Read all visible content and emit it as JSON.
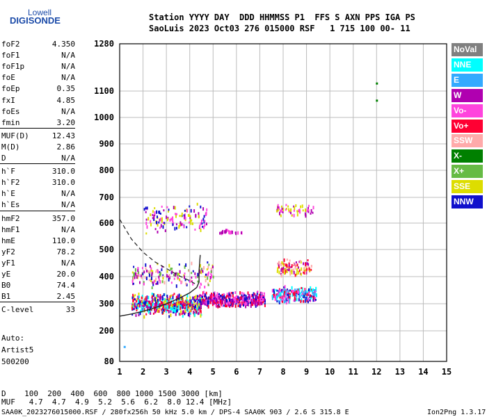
{
  "logo": {
    "line1": "Lowell",
    "line2": "DIGISONDE"
  },
  "header": {
    "line1": "Station YYYY DAY  DDD HHMMSS P1  FFS S AXN PPS IGA PS",
    "line2": "SaoLuis 2023 Oct03 276 015000 RSF   1 715 100 00- 11"
  },
  "params": [
    {
      "name": "foF2",
      "value": "4.350"
    },
    {
      "name": "foF1",
      "value": "N/A"
    },
    {
      "name": "foF1p",
      "value": "N/A"
    },
    {
      "name": "foE",
      "value": "N/A"
    },
    {
      "name": "foEp",
      "value": "0.35"
    },
    {
      "name": "fxI",
      "value": "4.85"
    },
    {
      "name": "foEs",
      "value": "N/A"
    },
    {
      "name": "fmin",
      "value": "3.20"
    },
    {
      "name": "MUF(D)",
      "value": "12.43"
    },
    {
      "name": "M(D)",
      "value": "2.86"
    },
    {
      "name": "D",
      "value": "N/A"
    },
    {
      "name": "h`F",
      "value": "310.0"
    },
    {
      "name": "h`F2",
      "value": "310.0"
    },
    {
      "name": "h`E",
      "value": "N/A"
    },
    {
      "name": "h`Es",
      "value": "N/A"
    },
    {
      "name": "hmF2",
      "value": "357.0"
    },
    {
      "name": "hmF1",
      "value": "N/A"
    },
    {
      "name": "hmE",
      "value": "110.0"
    },
    {
      "name": "yF2",
      "value": "78.2"
    },
    {
      "name": "yF1",
      "value": "N/A"
    },
    {
      "name": "yE",
      "value": "20.0"
    },
    {
      "name": "B0",
      "value": "74.4"
    },
    {
      "name": "B1",
      "value": "2.45"
    },
    {
      "name": "C-level",
      "value": "33"
    }
  ],
  "auto": {
    "label": "Auto:",
    "artist": "Artist5",
    "version": "500200"
  },
  "legend": [
    {
      "label": "NoVal",
      "color": "#808080"
    },
    {
      "label": "NNE",
      "color": "#00ffff"
    },
    {
      "label": "E",
      "color": "#33aaff"
    },
    {
      "label": "W",
      "color": "#b000b0"
    },
    {
      "label": "Vo-",
      "color": "#ff44dd"
    },
    {
      "label": "Vo+",
      "color": "#ff0033"
    },
    {
      "label": "SSW",
      "color": "#ffaaaa"
    },
    {
      "label": "X-",
      "color": "#008000"
    },
    {
      "label": "X+",
      "color": "#66bb44"
    },
    {
      "label": "SSE",
      "color": "#dddd00"
    },
    {
      "label": "NNW",
      "color": "#1010cc"
    }
  ],
  "muf_table": {
    "line1": "D    100  200  400  600  800 1000 1500 3000 [km]",
    "line2": "MUF   4.7  4.7  4.9  5.2  5.6  6.2  8.0 12.4 [MHz]"
  },
  "footer": {
    "left": "SAA0K_2023276015000.RSF / 280fx256h 50 kHz 5.0 km / DPS-4 SAA0K 903 / 2.6 S 315.8 E",
    "right": "Ion2Png 1.3.17"
  },
  "chart_data": {
    "type": "scatter",
    "x_ticks": [
      1,
      2,
      3,
      4,
      5,
      6,
      7,
      8,
      9,
      10,
      11,
      12,
      13,
      14,
      15
    ],
    "y_ticks": [
      80,
      200,
      300,
      400,
      500,
      600,
      700,
      800,
      900,
      1000,
      1100,
      1280
    ],
    "xlim": [
      1,
      15
    ],
    "ylim": [
      80,
      1280
    ],
    "y_scale": "quasi-log",
    "grid": true,
    "legend_position": "right",
    "profile_curve": [
      [
        1.0,
        254
      ],
      [
        1.5,
        262
      ],
      [
        2.0,
        272
      ],
      [
        2.5,
        285
      ],
      [
        3.0,
        300
      ],
      [
        3.5,
        318
      ],
      [
        4.0,
        340
      ],
      [
        4.3,
        360
      ],
      [
        4.4,
        380
      ],
      [
        4.4,
        420
      ],
      [
        4.45,
        480
      ]
    ],
    "trace_curve": [
      [
        1.0,
        615
      ],
      [
        1.5,
        540
      ],
      [
        2.0,
        490
      ],
      [
        2.5,
        455
      ],
      [
        3.0,
        430
      ],
      [
        3.5,
        405
      ],
      [
        4.0,
        385
      ],
      [
        4.3,
        370
      ]
    ],
    "echo_regions": [
      {
        "x": [
          1.5,
          4.5
        ],
        "y": [
          255,
          345
        ],
        "colors": [
          "#b000b0",
          "#1010cc",
          "#ff0033",
          "#dddd00",
          "#00ffff"
        ],
        "density": 520
      },
      {
        "x": [
          4.5,
          7.2
        ],
        "y": [
          290,
          350
        ],
        "colors": [
          "#b000b0",
          "#ff0033",
          "#1010cc",
          "#ff44dd"
        ],
        "density": 420
      },
      {
        "x": [
          7.5,
          9.4
        ],
        "y": [
          305,
          370
        ],
        "colors": [
          "#ff0033",
          "#00ffff",
          "#33aaff",
          "#1010cc",
          "#ff44dd"
        ],
        "density": 240
      },
      {
        "x": [
          1.5,
          5.0
        ],
        "y": [
          360,
          460
        ],
        "colors": [
          "#b000b0",
          "#ff44dd",
          "#dddd00",
          "#66bb44",
          "#ffaaaa",
          "#1010cc"
        ],
        "density": 180
      },
      {
        "x": [
          7.7,
          9.2
        ],
        "y": [
          405,
          470
        ],
        "colors": [
          "#ff0033",
          "#ffaaaa",
          "#b000b0",
          "#dddd00"
        ],
        "density": 110
      },
      {
        "x": [
          2.0,
          4.7
        ],
        "y": [
          560,
          680
        ],
        "colors": [
          "#b000b0",
          "#ff44dd",
          "#1010cc",
          "#dddd00"
        ],
        "density": 130
      },
      {
        "x": [
          5.2,
          6.2
        ],
        "y": [
          560,
          580
        ],
        "colors": [
          "#b000b0",
          "#ff44dd"
        ],
        "density": 30
      },
      {
        "x": [
          7.7,
          9.3
        ],
        "y": [
          630,
          680
        ],
        "colors": [
          "#b000b0",
          "#ff44dd",
          "#dddd00"
        ],
        "density": 55
      }
    ],
    "isolated_points": [
      {
        "x": 1.2,
        "y": 138,
        "color": "#33aaff"
      },
      {
        "x": 12.0,
        "y": 1130,
        "color": "#008000"
      },
      {
        "x": 12.0,
        "y": 1065,
        "color": "#008000"
      }
    ]
  }
}
